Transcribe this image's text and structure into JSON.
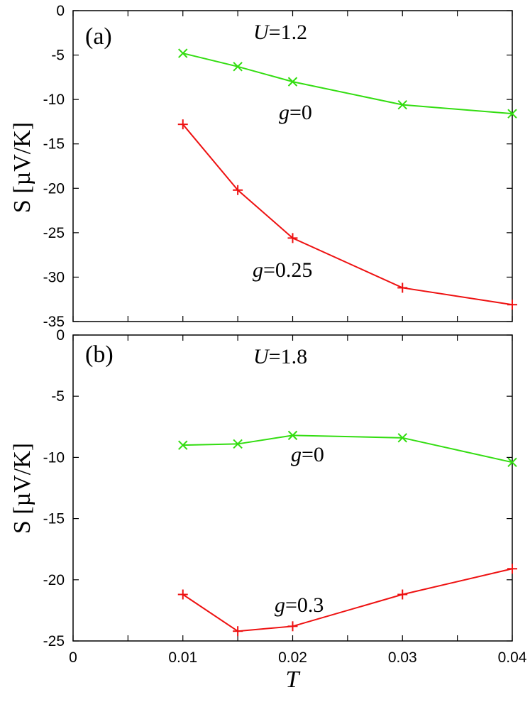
{
  "chart_data": [
    {
      "type": "line",
      "panel_label": "(a)",
      "ylabel": "S [µV/K]",
      "xlabel": "",
      "xlim": [
        0,
        0.04
      ],
      "ylim": [
        -35,
        0
      ],
      "yticks": [
        0,
        -5,
        -10,
        -15,
        -20,
        -25,
        -30,
        -35
      ],
      "yticklabels": [
        "0",
        "-5",
        "-10",
        "-15",
        "-20",
        "-25",
        "-30",
        "-35"
      ],
      "xticks": [
        0,
        0.005,
        0.01,
        0.015,
        0.02,
        0.025,
        0.03,
        0.035,
        0.04
      ],
      "xticklabels": [],
      "annotation": {
        "prefix": "U",
        "suffix": "=1.2"
      },
      "series": [
        {
          "name": "g=0",
          "label_prefix": "g",
          "label_suffix": "=0",
          "color": "#33dd11",
          "marker": "x",
          "x": [
            0.01,
            0.015,
            0.02,
            0.03,
            0.04
          ],
          "values": [
            -4.8,
            -6.3,
            -8.0,
            -10.6,
            -11.6
          ]
        },
        {
          "name": "g=0.25",
          "label_prefix": "g",
          "label_suffix": "=0.25",
          "color": "#ee1111",
          "marker": "+",
          "x": [
            0.01,
            0.015,
            0.02,
            0.03,
            0.04
          ],
          "values": [
            -12.8,
            -20.2,
            -25.6,
            -31.2,
            -33.1
          ]
        }
      ]
    },
    {
      "type": "line",
      "panel_label": "(b)",
      "ylabel": "S [µV/K]",
      "xlabel": "T",
      "xlim": [
        0,
        0.04
      ],
      "ylim": [
        -25,
        0
      ],
      "yticks": [
        0,
        -5,
        -10,
        -15,
        -20,
        -25
      ],
      "yticklabels": [
        "0",
        "-5",
        "-10",
        "-15",
        "-20",
        "-25"
      ],
      "xticks": [
        0,
        0.005,
        0.01,
        0.015,
        0.02,
        0.025,
        0.03,
        0.035,
        0.04
      ],
      "xticklabels": [
        "0",
        "",
        "0.01",
        "",
        "0.02",
        "",
        "0.03",
        "",
        "0.04"
      ],
      "annotation": {
        "prefix": "U",
        "suffix": "=1.8"
      },
      "series": [
        {
          "name": "g=0",
          "label_prefix": "g",
          "label_suffix": "=0",
          "color": "#33dd11",
          "marker": "x",
          "x": [
            0.01,
            0.015,
            0.02,
            0.03,
            0.04
          ],
          "values": [
            -9.0,
            -8.9,
            -8.2,
            -8.4,
            -10.4
          ]
        },
        {
          "name": "g=0.3",
          "label_prefix": "g",
          "label_suffix": "=0.3",
          "color": "#ee1111",
          "marker": "+",
          "x": [
            0.01,
            0.015,
            0.02,
            0.03,
            0.04
          ],
          "values": [
            -21.2,
            -24.2,
            -23.8,
            -21.2,
            -19.1
          ]
        }
      ]
    }
  ]
}
